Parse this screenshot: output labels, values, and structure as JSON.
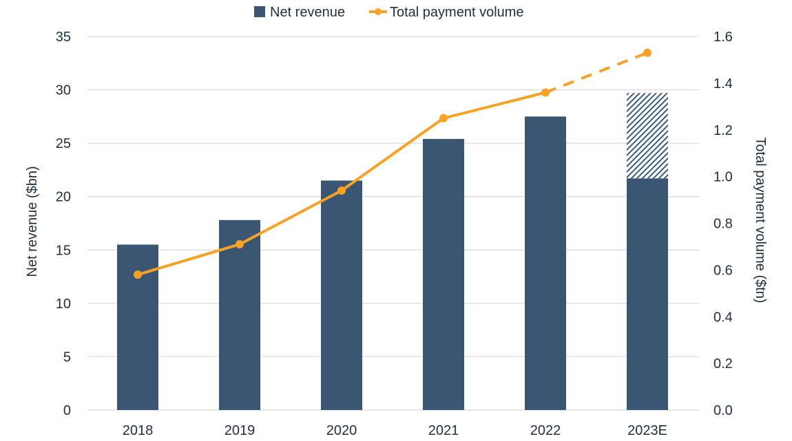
{
  "chart_data": {
    "type": "bar",
    "categories": [
      "2018",
      "2019",
      "2020",
      "2021",
      "2022",
      "2023E"
    ],
    "series": [
      {
        "name": "Net revenue",
        "kind": "bar",
        "axis": "left",
        "color": "#3a5672",
        "values": [
          15.5,
          17.8,
          21.5,
          25.4,
          27.5,
          21.7
        ],
        "projected_top": [
          null,
          null,
          null,
          null,
          null,
          29.7
        ],
        "projected_pattern": "diagonal-hatch"
      },
      {
        "name": "Total payment volume",
        "kind": "line",
        "axis": "right",
        "color": "#f7a127",
        "values": [
          0.58,
          0.71,
          0.94,
          1.25,
          1.36,
          1.53
        ],
        "dashed_from_index": 4,
        "markers": true
      }
    ],
    "ylabel": "Net revenue ($bn)",
    "y2label": "Total payment volume ($tn)",
    "ylim": [
      0,
      35
    ],
    "y2lim": [
      0,
      1.6
    ],
    "yticks": [
      "0",
      "5",
      "10",
      "15",
      "20",
      "25",
      "30",
      "35"
    ],
    "y2ticks": [
      "0.0",
      "0.2",
      "0.4",
      "0.6",
      "0.8",
      "1.0",
      "1.2",
      "1.4",
      "1.6"
    ],
    "grid": "horizontal",
    "legend": {
      "position": "top-center",
      "entries": [
        "Net revenue",
        "Total payment volume"
      ]
    }
  }
}
